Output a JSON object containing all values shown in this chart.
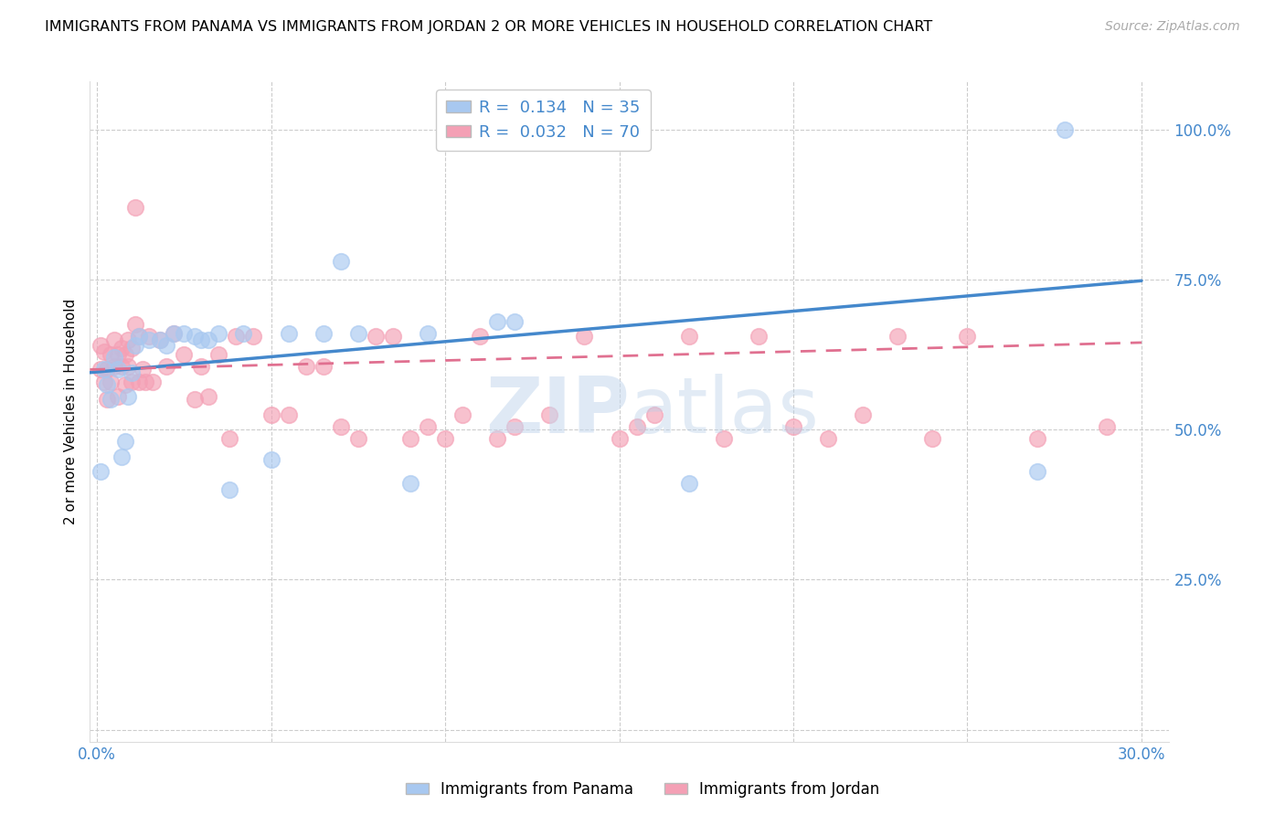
{
  "title": "IMMIGRANTS FROM PANAMA VS IMMIGRANTS FROM JORDAN 2 OR MORE VEHICLES IN HOUSEHOLD CORRELATION CHART",
  "source": "Source: ZipAtlas.com",
  "ylabel": "2 or more Vehicles in Household",
  "xlim_min": -0.002,
  "xlim_max": 0.308,
  "ylim_min": -0.02,
  "ylim_max": 1.08,
  "xtick_vals": [
    0.0,
    0.05,
    0.1,
    0.15,
    0.2,
    0.25,
    0.3
  ],
  "xtick_labels": [
    "0.0%",
    "",
    "",
    "",
    "",
    "",
    "30.0%"
  ],
  "ytick_vals": [
    0.0,
    0.25,
    0.5,
    0.75,
    1.0
  ],
  "ytick_labels": [
    "",
    "25.0%",
    "50.0%",
    "75.0%",
    "100.0%"
  ],
  "panama_R": 0.134,
  "panama_N": 35,
  "jordan_R": 0.032,
  "jordan_N": 70,
  "panama_color": "#a8c8f0",
  "jordan_color": "#f4a0b5",
  "panama_line_color": "#4488cc",
  "jordan_line_color": "#e07090",
  "watermark": "ZIPatlas",
  "panama_x": [
    0.001,
    0.002,
    0.003,
    0.004,
    0.005,
    0.006,
    0.007,
    0.008,
    0.009,
    0.01,
    0.011,
    0.012,
    0.015,
    0.018,
    0.02,
    0.022,
    0.025,
    0.028,
    0.03,
    0.032,
    0.035,
    0.038,
    0.042,
    0.05,
    0.055,
    0.065,
    0.07,
    0.075,
    0.09,
    0.095,
    0.115,
    0.12,
    0.17,
    0.27,
    0.278
  ],
  "panama_y": [
    0.43,
    0.6,
    0.575,
    0.55,
    0.62,
    0.6,
    0.455,
    0.48,
    0.555,
    0.595,
    0.64,
    0.655,
    0.65,
    0.65,
    0.64,
    0.66,
    0.66,
    0.655,
    0.65,
    0.65,
    0.66,
    0.4,
    0.66,
    0.45,
    0.66,
    0.66,
    0.78,
    0.66,
    0.41,
    0.66,
    0.68,
    0.68,
    0.41,
    0.43,
    1.0
  ],
  "jordan_x": [
    0.001,
    0.001,
    0.002,
    0.002,
    0.003,
    0.003,
    0.004,
    0.004,
    0.005,
    0.005,
    0.006,
    0.006,
    0.007,
    0.007,
    0.008,
    0.008,
    0.009,
    0.009,
    0.01,
    0.01,
    0.011,
    0.011,
    0.012,
    0.012,
    0.013,
    0.014,
    0.015,
    0.016,
    0.018,
    0.02,
    0.022,
    0.025,
    0.028,
    0.03,
    0.032,
    0.035,
    0.038,
    0.04,
    0.045,
    0.05,
    0.055,
    0.06,
    0.065,
    0.07,
    0.075,
    0.08,
    0.085,
    0.09,
    0.095,
    0.1,
    0.105,
    0.11,
    0.115,
    0.12,
    0.13,
    0.14,
    0.15,
    0.155,
    0.16,
    0.17,
    0.18,
    0.19,
    0.2,
    0.21,
    0.22,
    0.23,
    0.24,
    0.25,
    0.27,
    0.29
  ],
  "jordan_y": [
    0.64,
    0.6,
    0.63,
    0.58,
    0.6,
    0.55,
    0.625,
    0.58,
    0.65,
    0.605,
    0.625,
    0.555,
    0.635,
    0.605,
    0.575,
    0.625,
    0.65,
    0.605,
    0.58,
    0.635,
    0.675,
    0.87,
    0.655,
    0.58,
    0.6,
    0.58,
    0.655,
    0.58,
    0.65,
    0.605,
    0.66,
    0.625,
    0.55,
    0.605,
    0.555,
    0.625,
    0.485,
    0.655,
    0.655,
    0.525,
    0.525,
    0.605,
    0.605,
    0.505,
    0.485,
    0.655,
    0.655,
    0.485,
    0.505,
    0.485,
    0.525,
    0.655,
    0.485,
    0.505,
    0.525,
    0.655,
    0.485,
    0.505,
    0.525,
    0.655,
    0.485,
    0.655,
    0.505,
    0.485,
    0.525,
    0.655,
    0.485,
    0.655,
    0.485,
    0.505
  ],
  "panama_trendline": [
    0.595,
    0.748
  ],
  "jordan_trendline": [
    0.6,
    0.645
  ]
}
